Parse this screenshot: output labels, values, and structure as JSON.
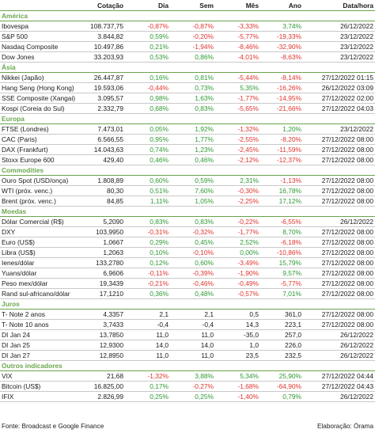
{
  "header": {
    "col_name": "",
    "col_value": "Cotação",
    "col_day": "Dia",
    "col_week": "Sem",
    "col_month": "Mês",
    "col_year": "Ano",
    "col_datetime": "Data/hora"
  },
  "colors": {
    "section": "#6aa84f",
    "positive": "#2e9a33",
    "negative": "#e0352f",
    "divider": "#6ba34a"
  },
  "sections": [
    {
      "title": "América",
      "rows": [
        {
          "name": "Ibovespa",
          "value": "108.737,75",
          "day": "-0,87%",
          "week": "-0,87%",
          "month": "-3,33%",
          "year": "3,74%",
          "datetime": "26/12/2022"
        },
        {
          "name": "S&P 500",
          "value": "3.844,82",
          "day": "0,59%",
          "week": "-0,20%",
          "month": "-5,77%",
          "year": "-19,33%",
          "datetime": "23/12/2022"
        },
        {
          "name": "Nasdaq Composite",
          "value": "10.497,86",
          "day": "0,21%",
          "week": "-1,94%",
          "month": "-8,46%",
          "year": "-32,90%",
          "datetime": "23/12/2022"
        },
        {
          "name": "Dow Jones",
          "value": "33.203,93",
          "day": "0,53%",
          "week": "0,86%",
          "month": "-4,01%",
          "year": "-8,63%",
          "datetime": "23/12/2022"
        }
      ]
    },
    {
      "title": "Ásia",
      "rows": [
        {
          "name": "Nikkei (Japão)",
          "value": "26.447,87",
          "day": "0,16%",
          "week": "0,81%",
          "month": "-5,44%",
          "year": "-8,14%",
          "datetime": "27/12/2022 01:15"
        },
        {
          "name": "Hang Seng (Hong Kong)",
          "value": "19.593,06",
          "day": "-0,44%",
          "week": "0,73%",
          "month": "5,35%",
          "year": "-16,26%",
          "datetime": "26/12/2022 03:09"
        },
        {
          "name": "SSE Composite (Xangai)",
          "value": "3.095,57",
          "day": "0,98%",
          "week": "1,63%",
          "month": "-1,77%",
          "year": "-14,95%",
          "datetime": "27/12/2022 02:00"
        },
        {
          "name": "Kospi (Coreia do Sul)",
          "value": "2.332,79",
          "day": "0,68%",
          "week": "0,83%",
          "month": "-5,65%",
          "year": "-21,66%",
          "datetime": "27/12/2022 04:03"
        }
      ]
    },
    {
      "title": "Europa",
      "rows": [
        {
          "name": "FTSE (Londres)",
          "value": "7.473,01",
          "day": "0,05%",
          "week": "1,92%",
          "month": "-1,32%",
          "year": "1,20%",
          "datetime": "23/12/2022"
        },
        {
          "name": "CAC (Paris)",
          "value": "6.566,55",
          "day": "0,95%",
          "week": "1,77%",
          "month": "-2,55%",
          "year": "-8,20%",
          "datetime": "27/12/2022 08:00"
        },
        {
          "name": "DAX (Frankfurt)",
          "value": "14.043,63",
          "day": "0,74%",
          "week": "1,23%",
          "month": "-2,45%",
          "year": "-11,59%",
          "datetime": "27/12/2022 08:00"
        },
        {
          "name": "Stoxx Europe 600",
          "value": "429,40",
          "day": "0,46%",
          "week": "0,46%",
          "month": "-2,12%",
          "year": "-12,37%",
          "datetime": "27/12/2022 08:00"
        }
      ]
    },
    {
      "title": "Commodities",
      "rows": [
        {
          "name": "Ouro Spot (USD/onça)",
          "value": "1.808,89",
          "day": "0,60%",
          "week": "0,59%",
          "month": "2,31%",
          "year": "-1,13%",
          "datetime": "27/12/2022 08:00"
        },
        {
          "name": "WTI (próx. venc.)",
          "value": "80,30",
          "day": "0,51%",
          "week": "7,60%",
          "month": "-0,30%",
          "year": "16,78%",
          "datetime": "27/12/2022 08:00"
        },
        {
          "name": "Brent (próx. venc.)",
          "value": "84,85",
          "day": "1,11%",
          "week": "1,05%",
          "month": "-2,25%",
          "year": "17,12%",
          "datetime": "27/12/2022 08:00"
        }
      ]
    },
    {
      "title": "Moedas",
      "rows": [
        {
          "name": "Dólar Comercial (R$)",
          "value": "5,2090",
          "day": "0,83%",
          "week": "0,83%",
          "month": "-0,22%",
          "year": "-6,55%",
          "datetime": "26/12/2022"
        },
        {
          "name": "DXY",
          "value": "103,9950",
          "day": "-0,31%",
          "week": "-0,32%",
          "month": "-1,77%",
          "year": "8,70%",
          "datetime": "27/12/2022 08:00"
        },
        {
          "name": "Euro (US$)",
          "value": "1,0667",
          "day": "0,29%",
          "week": "0,45%",
          "month": "2,52%",
          "year": "-6,18%",
          "datetime": "27/12/2022 08:00"
        },
        {
          "name": "Libra (US$)",
          "value": "1,2063",
          "day": "0,10%",
          "week": "-0,10%",
          "month": "0,00%",
          "year": "-10,86%",
          "datetime": "27/12/2022 08:00"
        },
        {
          "name": "Ienes/dólar",
          "value": "133,2780",
          "day": "0,12%",
          "week": "0,60%",
          "month": "-3,49%",
          "year": "15,79%",
          "datetime": "27/12/2022 08:00"
        },
        {
          "name": "Yuans/dólar",
          "value": "6,9606",
          "day": "-0,11%",
          "week": "-0,39%",
          "month": "-1,90%",
          "year": "9,57%",
          "datetime": "27/12/2022 08:00"
        },
        {
          "name": "Peso mex/dólar",
          "value": "19,3439",
          "day": "-0,21%",
          "week": "-0,46%",
          "month": "-0,49%",
          "year": "-5,77%",
          "datetime": "27/12/2022 08:00"
        },
        {
          "name": "Rand sul-africano/dólar",
          "value": "17,1210",
          "day": "0,36%",
          "week": "0,48%",
          "month": "-0,57%",
          "year": "7,01%",
          "datetime": "27/12/2022 08:00"
        }
      ]
    },
    {
      "title": "Juros",
      "rows": [
        {
          "name": "T- Note 2 anos",
          "value": "4,3357",
          "day": "2,1",
          "week": "2,1",
          "month": "0,5",
          "year": "361,0",
          "datetime": "27/12/2022 08:00"
        },
        {
          "name": "T- Note 10 anos",
          "value": "3,7433",
          "day": "-0,4",
          "week": "-0,4",
          "month": "14,3",
          "year": "223,1",
          "datetime": "27/12/2022 08:00"
        },
        {
          "name": "DI Jan 24",
          "value": "13,7850",
          "day": "11,0",
          "week": "11,0",
          "month": "-35,0",
          "year": "257,0",
          "datetime": "26/12/2022"
        },
        {
          "name": "DI Jan 25",
          "value": "12,9300",
          "day": "14,0",
          "week": "14,0",
          "month": "1,0",
          "year": "226,0",
          "datetime": "26/12/2022"
        },
        {
          "name": "DI Jan 27",
          "value": "12,8950",
          "day": "11,0",
          "week": "11,0",
          "month": "23,5",
          "year": "232,5",
          "datetime": "26/12/2022"
        }
      ]
    },
    {
      "title": "Outros indicadores",
      "rows": [
        {
          "name": "VIX",
          "value": "21,68",
          "day": "-1,32%",
          "week": "3,88%",
          "month": "5,34%",
          "year": "25,90%",
          "datetime": "27/12/2022 04:44"
        },
        {
          "name": "Bitcoin (US$)",
          "value": "16.825,00",
          "day": "0,17%",
          "week": "-0,27%",
          "month": "-1,68%",
          "year": "-64,90%",
          "datetime": "27/12/2022 04:43"
        },
        {
          "name": "IFIX",
          "value": "2.826,99",
          "day": "0,25%",
          "week": "0,25%",
          "month": "-1,40%",
          "year": "0,79%",
          "datetime": "26/12/2022"
        }
      ]
    }
  ],
  "footer": {
    "source": "Fonte: Broadcast e Google Finance",
    "elaboration": "Elaboração: Órama"
  }
}
